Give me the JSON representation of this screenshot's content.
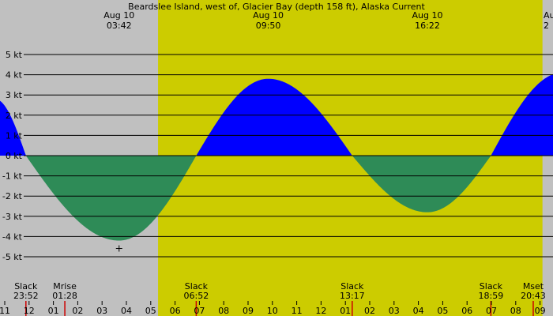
{
  "title": "Beardslee Island, west of, Glacier Bay (depth 158 ft), Alaska Current",
  "chart_data": {
    "type": "area",
    "title": "Beardslee Island, west of, Glacier Bay (depth 158 ft), Alaska Current",
    "y_unit": "kt",
    "ylim": [
      -5.5,
      5.5
    ],
    "y_ticks": [
      {
        "value": 5,
        "label": "5 kt"
      },
      {
        "value": 4,
        "label": "4 kt"
      },
      {
        "value": 3,
        "label": "3 kt"
      },
      {
        "value": 2,
        "label": "2 kt"
      },
      {
        "value": 1,
        "label": "1 kt"
      },
      {
        "value": 0,
        "label": "0 kt"
      },
      {
        "value": -1,
        "label": "-1 kt"
      },
      {
        "value": -2,
        "label": "-2 kt"
      },
      {
        "value": -3,
        "label": "-3 kt"
      },
      {
        "value": -4,
        "label": "-4 kt"
      },
      {
        "value": -5,
        "label": "-5 kt"
      }
    ],
    "x_range_hours": [
      22.8,
      33.5
    ],
    "hour_ticks": [
      {
        "h": 23,
        "label": "11"
      },
      {
        "h": 24,
        "label": "12"
      },
      {
        "h": 25,
        "label": "01"
      },
      {
        "h": 26,
        "label": "02"
      },
      {
        "h": 27,
        "label": "03"
      },
      {
        "h": 28,
        "label": "04"
      },
      {
        "h": 29,
        "label": "05"
      },
      {
        "h": 30,
        "label": "06"
      },
      {
        "h": 31,
        "label": "07"
      },
      {
        "h": 32,
        "label": "08"
      },
      {
        "h": 33,
        "label": "09"
      },
      {
        "h": 34,
        "label": "10"
      },
      {
        "h": 35,
        "label": "11"
      },
      {
        "h": 36,
        "label": "12"
      },
      {
        "h": 37,
        "label": "01"
      },
      {
        "h": 38,
        "label": "02"
      },
      {
        "h": 39,
        "label": "03"
      },
      {
        "h": 40,
        "label": "04"
      },
      {
        "h": 41,
        "label": "05"
      },
      {
        "h": 42,
        "label": "06"
      },
      {
        "h": 43,
        "label": "07"
      },
      {
        "h": 44,
        "label": "08"
      },
      {
        "h": 45,
        "label": "09"
      }
    ],
    "day_band": {
      "start_h": 29.3,
      "end_h": 45.1
    },
    "curve_points": [
      {
        "h": 22.6,
        "v": 2.8
      },
      {
        "h": 23.87,
        "v": 0
      },
      {
        "h": 27.7,
        "v": -4.2
      },
      {
        "h": 30.87,
        "v": 0
      },
      {
        "h": 33.83,
        "v": 3.8
      },
      {
        "h": 37.28,
        "v": 0
      },
      {
        "h": 40.37,
        "v": -2.8
      },
      {
        "h": 42.98,
        "v": 0
      },
      {
        "h": 45.9,
        "v": 4.1
      }
    ],
    "extrema_labels": [
      {
        "h": 27.7,
        "line1": "Aug 10",
        "line2": "03:42"
      },
      {
        "h": 33.83,
        "line1": "Aug 10",
        "line2": "09:50"
      },
      {
        "h": 40.37,
        "line1": "Aug 10",
        "line2": "16:22"
      },
      {
        "h": 46.8,
        "line1": "Aug",
        "line2": "2"
      }
    ],
    "marker": {
      "h": 27.7,
      "v": -4.2
    },
    "events": [
      {
        "h": 23.87,
        "line1": "Slack",
        "line2": "23:52",
        "marker_color": "#cc0000"
      },
      {
        "h": 25.47,
        "line1": "Mrise",
        "line2": "01:28",
        "marker_color": "#cc0000"
      },
      {
        "h": 30.87,
        "line1": "Slack",
        "line2": "06:52",
        "marker_color": "#cc0000"
      },
      {
        "h": 37.28,
        "line1": "Slack",
        "line2": "13:17",
        "marker_color": "#cc0000"
      },
      {
        "h": 42.98,
        "line1": "Slack",
        "line2": "18:59",
        "marker_color": "#cc0000"
      },
      {
        "h": 44.72,
        "line1": "Mset",
        "line2": "20:43",
        "marker_color": "#cc0000"
      }
    ],
    "colors": {
      "night": "#c0c0c0",
      "day": "#cccc00",
      "flood": "#0000ff",
      "ebb": "#2e8b57",
      "gridline": "#000000"
    }
  }
}
